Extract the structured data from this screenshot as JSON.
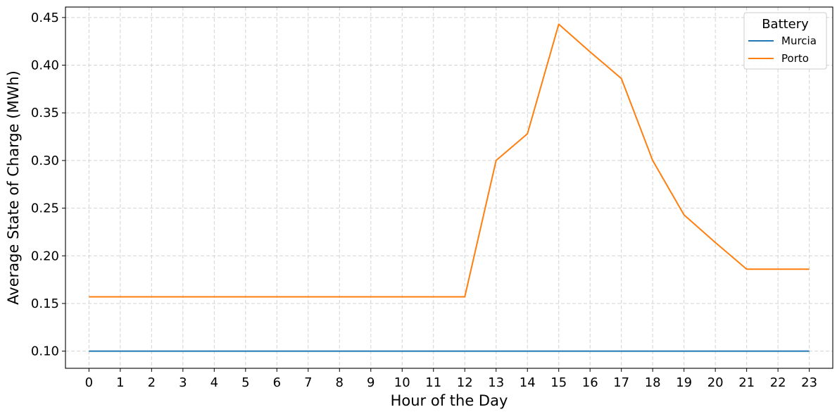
{
  "chart_data": {
    "type": "line",
    "xlabel": "Hour of the Day",
    "ylabel": "Average State of Charge (MWh)",
    "x": [
      0,
      1,
      2,
      3,
      4,
      5,
      6,
      7,
      8,
      9,
      10,
      11,
      12,
      13,
      14,
      15,
      16,
      17,
      18,
      19,
      20,
      21,
      22,
      23
    ],
    "x_ticks": [
      "0",
      "1",
      "2",
      "3",
      "4",
      "5",
      "6",
      "7",
      "8",
      "9",
      "10",
      "11",
      "12",
      "13",
      "14",
      "15",
      "16",
      "17",
      "18",
      "19",
      "20",
      "21",
      "22",
      "23"
    ],
    "xlim": [
      -0.75,
      23.75
    ],
    "ylim": [
      0.082,
      0.461
    ],
    "y_ticks": [
      0.1,
      0.15,
      0.2,
      0.25,
      0.3,
      0.35,
      0.4,
      0.45
    ],
    "y_tick_labels": [
      "0.10",
      "0.15",
      "0.20",
      "0.25",
      "0.30",
      "0.35",
      "0.40",
      "0.45"
    ],
    "grid": true,
    "legend": {
      "title": "Battery",
      "placement": "top-right"
    },
    "series": [
      {
        "name": "Murcia",
        "color": "#1f77b4",
        "values": [
          0.1,
          0.1,
          0.1,
          0.1,
          0.1,
          0.1,
          0.1,
          0.1,
          0.1,
          0.1,
          0.1,
          0.1,
          0.1,
          0.1,
          0.1,
          0.1,
          0.1,
          0.1,
          0.1,
          0.1,
          0.1,
          0.1,
          0.1,
          0.1
        ]
      },
      {
        "name": "Porto",
        "color": "#ff7f0e",
        "values": [
          0.157,
          0.157,
          0.157,
          0.157,
          0.157,
          0.157,
          0.157,
          0.157,
          0.157,
          0.157,
          0.157,
          0.157,
          0.157,
          0.3,
          0.328,
          0.443,
          0.414,
          0.386,
          0.3,
          0.243,
          0.214,
          0.186,
          0.186,
          0.186
        ]
      }
    ]
  }
}
